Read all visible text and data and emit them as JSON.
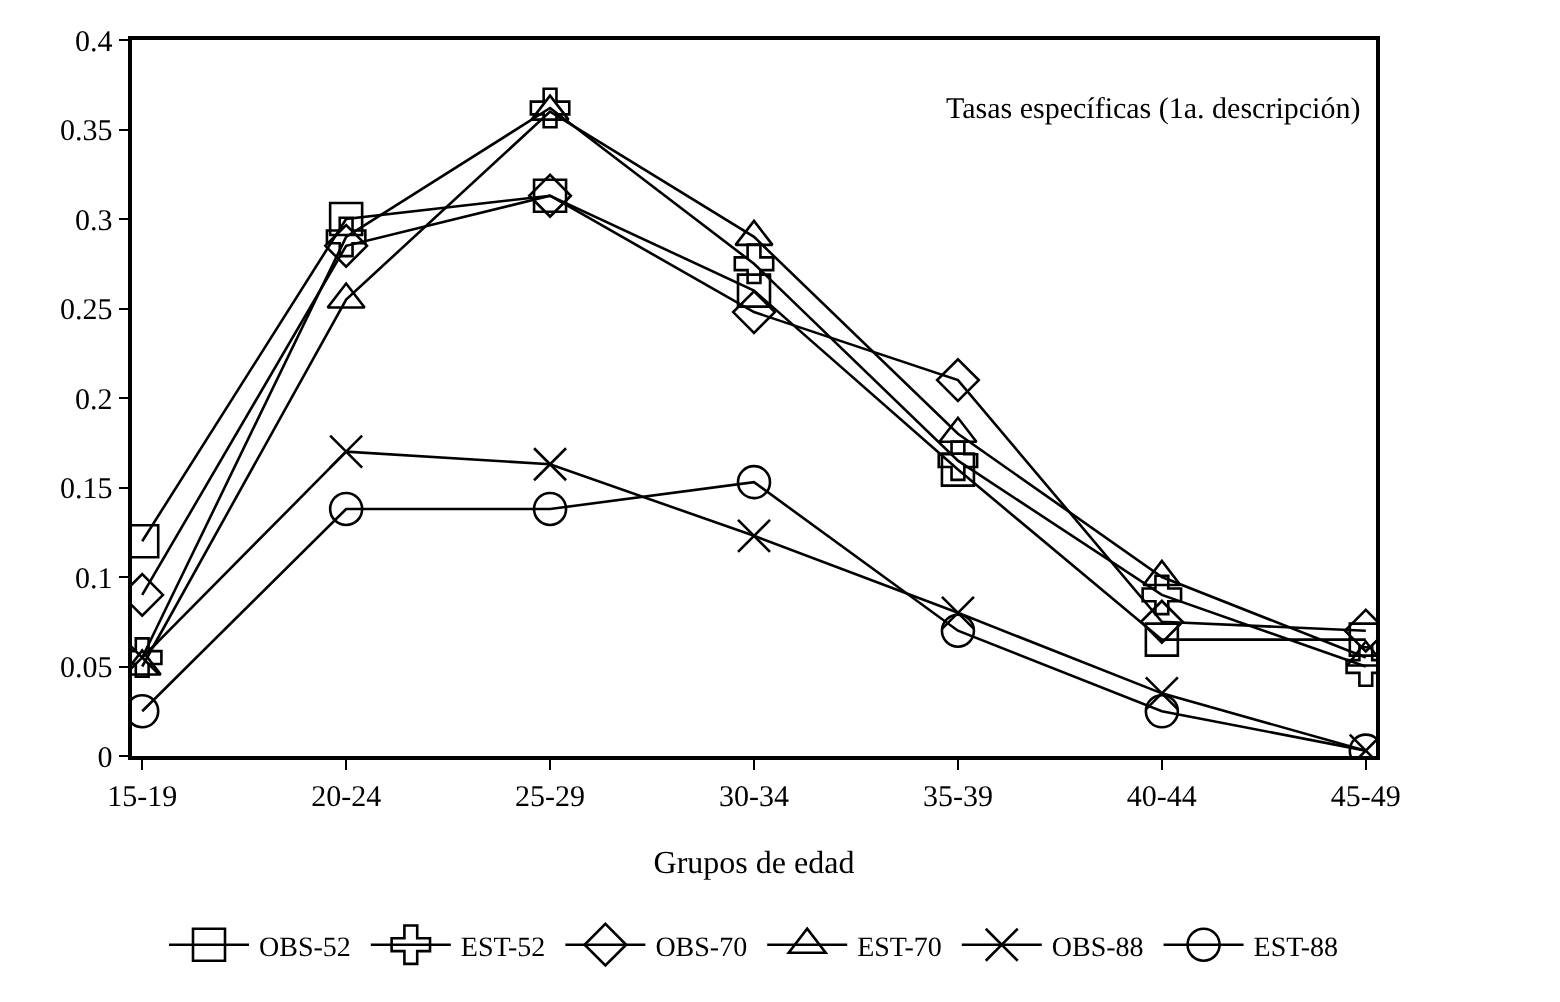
{
  "chart_data": {
    "type": "line",
    "xlabel": "Grupos de edad",
    "annotations": [
      "Tasas específicas (1a. descripción)"
    ],
    "categories": [
      "15-19",
      "20-24",
      "25-29",
      "30-34",
      "35-39",
      "40-44",
      "45-49"
    ],
    "ylim": [
      0,
      0.4
    ],
    "yticks": [
      0,
      0.05,
      0.1,
      0.15,
      0.2,
      0.25,
      0.3,
      0.35,
      0.4
    ],
    "grid": false,
    "legend": "bottom",
    "line_style": "solid",
    "series": [
      {
        "name": "OBS-52",
        "color": "#000000",
        "marker": "square",
        "values": [
          0.12,
          0.3,
          0.313,
          0.26,
          0.16,
          0.065,
          0.065
        ]
      },
      {
        "name": "EST-52",
        "color": "#000000",
        "marker": "cross",
        "values": [
          0.055,
          0.29,
          0.362,
          0.275,
          0.165,
          0.09,
          0.05
        ]
      },
      {
        "name": "OBS-70",
        "color": "#000000",
        "marker": "diamond",
        "values": [
          0.09,
          0.285,
          0.313,
          0.248,
          0.21,
          0.075,
          0.07
        ]
      },
      {
        "name": "EST-70",
        "color": "#000000",
        "marker": "triangle",
        "values": [
          0.05,
          0.255,
          0.36,
          0.29,
          0.18,
          0.1,
          0.055
        ]
      },
      {
        "name": "OBS-88",
        "color": "#000000",
        "marker": "cross",
        "values": [
          0.055,
          0.17,
          0.163,
          0.123,
          0.08,
          0.035,
          0.003
        ]
      },
      {
        "name": "EST-88",
        "color": "#000000",
        "marker": "circle",
        "values": [
          0.025,
          0.138,
          0.138,
          0.153,
          0.07,
          0.025,
          0.003
        ]
      }
    ]
  }
}
